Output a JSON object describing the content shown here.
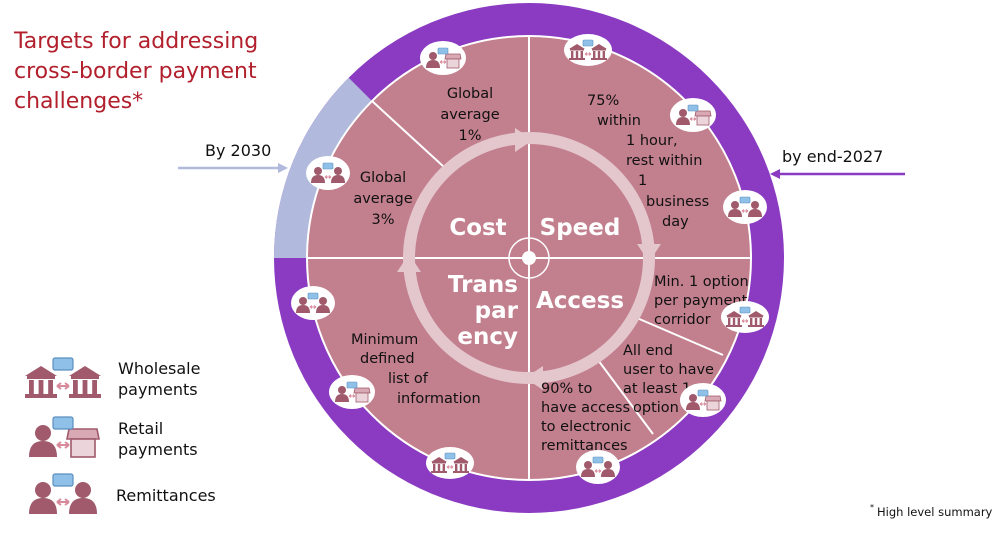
{
  "title": [
    "Targets for addressing",
    "cross-border payment",
    "challenges*"
  ],
  "annotations": {
    "left": "By 2030",
    "right": "by end-2027",
    "footnote_mark": "*",
    "footnote": "High level summary"
  },
  "pillars": {
    "cost": "Cost",
    "speed": "Speed",
    "transparency": [
      "Trans",
      "par",
      "ency"
    ],
    "access": "Access"
  },
  "targets": {
    "cost_retail": [
      "Global",
      "average",
      "1%"
    ],
    "cost_remittance": [
      "Global",
      "average",
      "3%"
    ],
    "speed_all": [
      "75%",
      "within",
      "1 hour,",
      "rest within",
      "1",
      "business",
      "day"
    ],
    "access_wholesale": [
      "Min. 1 option",
      "per payment",
      "corridor"
    ],
    "access_retail": [
      "All end",
      "user to have",
      "at least 1",
      "option"
    ],
    "access_remittance": [
      "90% to",
      "have access",
      "to electronic",
      "remittances"
    ],
    "transparency_all": [
      "Minimum",
      "defined",
      "list of",
      "information"
    ]
  },
  "legend": [
    {
      "icon": "wholesale-icon",
      "label": [
        "Wholesale",
        "payments"
      ]
    },
    {
      "icon": "retail-icon",
      "label": [
        "Retail",
        "payments"
      ]
    },
    {
      "icon": "remittance-icon",
      "label": [
        "Remittances"
      ]
    }
  ],
  "colors": {
    "ring": "#8a3bc2",
    "ring_2030": "#b1b9dc",
    "wheel": "#c27f8e",
    "arrow_ring": "#e4c6cd",
    "title": "#b1202c",
    "icon": "#a05a6b",
    "money": "#8ec0e8"
  }
}
